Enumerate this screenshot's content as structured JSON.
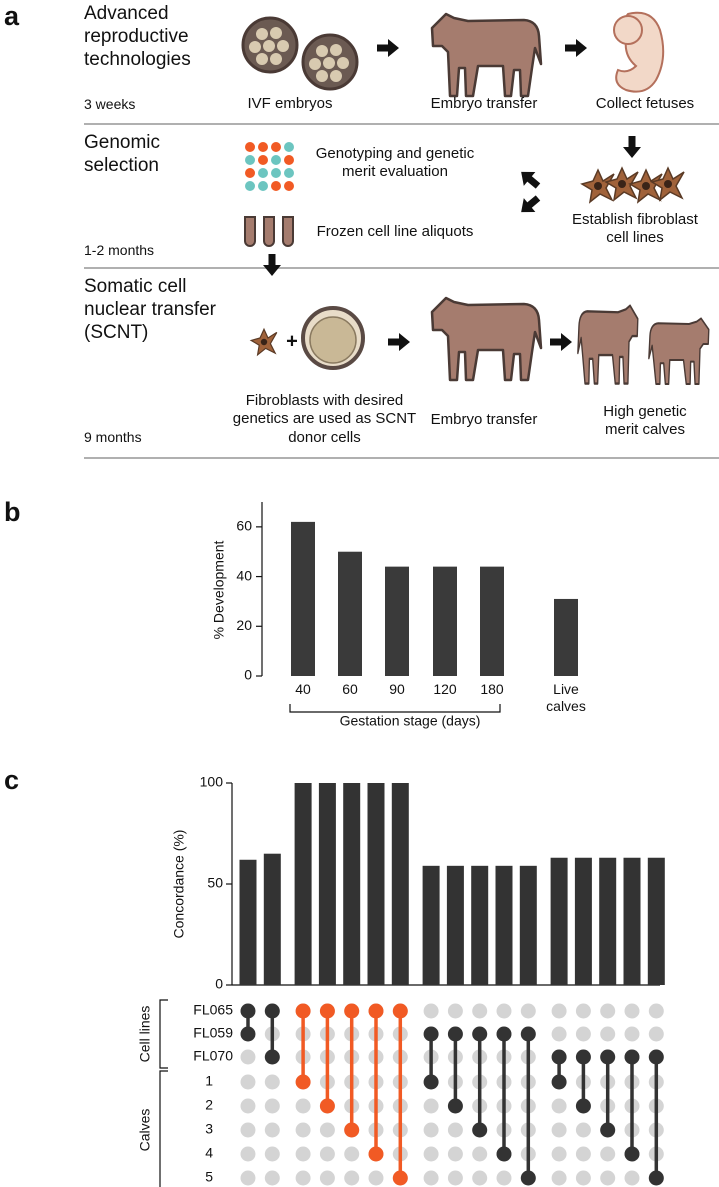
{
  "panel_labels": [
    "a",
    "b",
    "c"
  ],
  "panel_a": {
    "rows": [
      {
        "title": "Advanced reproductive technologies",
        "duration": "3 weeks",
        "steps": [
          "IVF embryos",
          "Embryo transfer",
          "Collect fetuses"
        ]
      },
      {
        "title": "Genomic selection",
        "duration": "1-2 months",
        "steps": [
          "Genotyping and genetic merit evaluation",
          "Frozen cell line aliquots",
          "Establish fibroblast cell lines"
        ]
      },
      {
        "title": "Somatic cell nuclear transfer (SCNT)",
        "duration": "9 months",
        "steps": [
          "Fibroblasts with desired genetics are used as SCNT donor cells",
          "Embryo transfer",
          "High genetic merit calves"
        ]
      }
    ]
  },
  "chart_data": [
    {
      "type": "bar",
      "categories": [
        "40",
        "60",
        "90",
        "120",
        "180",
        "Live calves"
      ],
      "values": [
        62,
        50,
        44,
        44,
        44,
        31
      ],
      "ylim": [
        0,
        70
      ],
      "yticks": [
        0,
        20,
        40,
        60
      ],
      "y_label": "% Development",
      "color": "#3a3a3a",
      "bracket_label": "Gestation stage (days)"
    },
    {
      "type": "upset",
      "values": [
        62,
        65,
        100,
        100,
        100,
        100,
        100,
        59,
        59,
        59,
        59,
        59,
        63,
        63,
        63,
        63,
        63
      ],
      "ylim": [
        0,
        100
      ],
      "yticks": [
        0,
        50,
        100
      ],
      "y_label": "Concordance (%)",
      "color": "#333333",
      "sets": [
        "FL065",
        "FL059",
        "FL070",
        "1",
        "2",
        "3",
        "4",
        "5"
      ],
      "set_groups": [
        {
          "name": "Cell lines",
          "sets": [
            0,
            1,
            2
          ]
        },
        {
          "name": "Calves",
          "sets": [
            3,
            4,
            5,
            6,
            7
          ]
        }
      ],
      "combinations": [
        [
          0,
          1
        ],
        [
          0,
          2
        ],
        [
          0,
          3
        ],
        [
          0,
          4
        ],
        [
          0,
          5
        ],
        [
          0,
          6
        ],
        [
          0,
          7
        ],
        [
          1,
          3
        ],
        [
          1,
          4
        ],
        [
          1,
          5
        ],
        [
          1,
          6
        ],
        [
          1,
          7
        ],
        [
          2,
          3
        ],
        [
          2,
          4
        ],
        [
          2,
          5
        ],
        [
          2,
          6
        ],
        [
          2,
          7
        ]
      ],
      "combination_colors": [
        "#333333",
        "#333333",
        "#f15a24",
        "#f15a24",
        "#f15a24",
        "#f15a24",
        "#f15a24",
        "#333333",
        "#333333",
        "#333333",
        "#333333",
        "#333333",
        "#333333",
        "#333333",
        "#333333",
        "#333333",
        "#333333"
      ],
      "empty_color": "#d4d4d4"
    }
  ]
}
